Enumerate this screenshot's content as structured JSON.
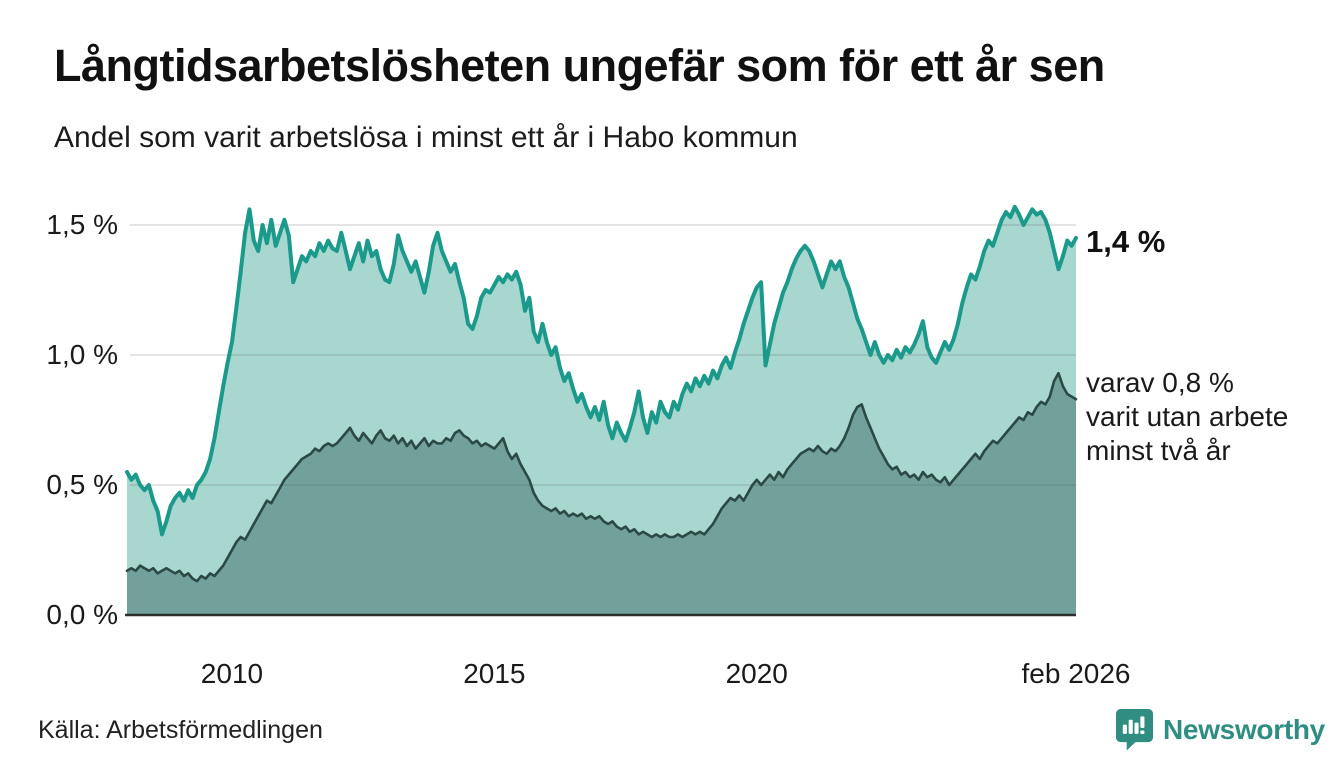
{
  "header": {
    "title": "Långtidsarbetslösheten ungefär som för ett år sen",
    "subtitle": "Andel som varit arbetslösa i minst ett år i Habo kommun"
  },
  "axis": {
    "y_labels": [
      "0,0 %",
      "0,5 %",
      "1,0 %",
      "1,5 %"
    ],
    "x_labels": [
      "2010",
      "2015",
      "2020",
      "feb 2026"
    ]
  },
  "annotations": {
    "end_value": "1,4 %",
    "sub_line1": "varav 0,8 %",
    "sub_line2": "varit utan arbete",
    "sub_line3": "minst två år"
  },
  "footer": {
    "source": "Källa: Arbetsförmedlingen",
    "brand": "Newsworthy"
  },
  "colors": {
    "line1": "#1b9a8c",
    "fill1": "#a8d7d0",
    "line2": "#2b4a45",
    "fill2": "#71a19a",
    "grid": "rgba(90,90,90,0.16)",
    "baseline": "#2f2f2f",
    "brand_teal": "#2f8d82"
  },
  "chart_data": {
    "type": "area",
    "title": "Långtidsarbetslösheten ungefär som för ett år sen",
    "subtitle": "Andel som varit arbetslösa i minst ett år i Habo kommun",
    "unit": "%",
    "x_domain": [
      2008.0,
      2026.0833
    ],
    "x_ticks": [
      {
        "label": "2010",
        "x": 2010
      },
      {
        "label": "2015",
        "x": 2015
      },
      {
        "label": "2020",
        "x": 2020
      },
      {
        "label": "feb 2026",
        "x": 2026.0833
      }
    ],
    "y_tick_values": [
      0,
      0.5,
      1.0,
      1.5
    ],
    "y_tick_labels": [
      "0,0 %",
      "0,5 %",
      "1,0 %",
      "1,5 %"
    ],
    "ylim": [
      0,
      1.65
    ],
    "grid": true,
    "legend_position": "right-annotations",
    "end_labels": {
      "series1": "1,4 %",
      "series2": "varav 0,8 % varit utan arbete minst två år"
    },
    "frequency": "monthly",
    "start": "2008-01",
    "end": "2026-02",
    "series": [
      {
        "name": "Andel arbetslösa minst ett år",
        "end_value": 1.4,
        "values": [
          0.55,
          0.52,
          0.54,
          0.5,
          0.48,
          0.5,
          0.44,
          0.4,
          0.31,
          0.36,
          0.42,
          0.45,
          0.47,
          0.44,
          0.48,
          0.45,
          0.5,
          0.52,
          0.55,
          0.6,
          0.68,
          0.78,
          0.88,
          0.97,
          1.05,
          1.18,
          1.32,
          1.47,
          1.56,
          1.44,
          1.4,
          1.5,
          1.43,
          1.52,
          1.42,
          1.47,
          1.52,
          1.46,
          1.28,
          1.33,
          1.38,
          1.36,
          1.4,
          1.38,
          1.43,
          1.4,
          1.44,
          1.41,
          1.4,
          1.47,
          1.4,
          1.33,
          1.38,
          1.43,
          1.36,
          1.44,
          1.38,
          1.4,
          1.33,
          1.29,
          1.28,
          1.35,
          1.46,
          1.4,
          1.36,
          1.32,
          1.36,
          1.3,
          1.24,
          1.32,
          1.42,
          1.47,
          1.4,
          1.36,
          1.32,
          1.35,
          1.28,
          1.22,
          1.12,
          1.1,
          1.15,
          1.22,
          1.25,
          1.24,
          1.27,
          1.3,
          1.28,
          1.31,
          1.29,
          1.32,
          1.27,
          1.17,
          1.22,
          1.09,
          1.05,
          1.12,
          1.05,
          1.0,
          1.03,
          0.95,
          0.9,
          0.93,
          0.87,
          0.82,
          0.85,
          0.8,
          0.76,
          0.8,
          0.75,
          0.82,
          0.73,
          0.68,
          0.74,
          0.7,
          0.67,
          0.72,
          0.78,
          0.86,
          0.76,
          0.7,
          0.78,
          0.74,
          0.82,
          0.78,
          0.76,
          0.82,
          0.79,
          0.85,
          0.89,
          0.86,
          0.91,
          0.88,
          0.92,
          0.89,
          0.94,
          0.91,
          0.96,
          0.99,
          0.95,
          1.01,
          1.06,
          1.12,
          1.17,
          1.22,
          1.26,
          1.28,
          0.96,
          1.04,
          1.12,
          1.18,
          1.24,
          1.28,
          1.33,
          1.37,
          1.4,
          1.42,
          1.4,
          1.36,
          1.31,
          1.26,
          1.31,
          1.36,
          1.33,
          1.36,
          1.3,
          1.26,
          1.2,
          1.14,
          1.1,
          1.05,
          1.0,
          1.05,
          1.0,
          0.97,
          1.0,
          0.98,
          1.02,
          0.99,
          1.03,
          1.01,
          1.04,
          1.08,
          1.13,
          1.03,
          0.99,
          0.97,
          1.01,
          1.05,
          1.02,
          1.06,
          1.12,
          1.2,
          1.26,
          1.31,
          1.29,
          1.34,
          1.4,
          1.44,
          1.42,
          1.47,
          1.52,
          1.55,
          1.53,
          1.57,
          1.54,
          1.5,
          1.53,
          1.56,
          1.54,
          1.55,
          1.52,
          1.47,
          1.4,
          1.33,
          1.38,
          1.44,
          1.42,
          1.45
        ]
      },
      {
        "name": "varav utan arbete minst två år",
        "end_value": 0.8,
        "values": [
          0.17,
          0.18,
          0.17,
          0.19,
          0.18,
          0.17,
          0.18,
          0.16,
          0.17,
          0.18,
          0.17,
          0.16,
          0.17,
          0.15,
          0.16,
          0.14,
          0.13,
          0.15,
          0.14,
          0.16,
          0.15,
          0.17,
          0.19,
          0.22,
          0.25,
          0.28,
          0.3,
          0.29,
          0.32,
          0.35,
          0.38,
          0.41,
          0.44,
          0.43,
          0.46,
          0.49,
          0.52,
          0.54,
          0.56,
          0.58,
          0.6,
          0.61,
          0.62,
          0.64,
          0.63,
          0.65,
          0.66,
          0.65,
          0.66,
          0.68,
          0.7,
          0.72,
          0.69,
          0.67,
          0.7,
          0.68,
          0.66,
          0.69,
          0.71,
          0.68,
          0.67,
          0.69,
          0.66,
          0.68,
          0.65,
          0.67,
          0.64,
          0.66,
          0.68,
          0.65,
          0.67,
          0.66,
          0.66,
          0.68,
          0.67,
          0.7,
          0.71,
          0.69,
          0.68,
          0.66,
          0.67,
          0.65,
          0.66,
          0.65,
          0.64,
          0.66,
          0.68,
          0.63,
          0.6,
          0.62,
          0.58,
          0.55,
          0.52,
          0.47,
          0.44,
          0.42,
          0.41,
          0.4,
          0.41,
          0.39,
          0.4,
          0.38,
          0.39,
          0.38,
          0.39,
          0.37,
          0.38,
          0.37,
          0.38,
          0.36,
          0.35,
          0.36,
          0.34,
          0.33,
          0.34,
          0.32,
          0.33,
          0.31,
          0.32,
          0.31,
          0.3,
          0.31,
          0.3,
          0.31,
          0.3,
          0.3,
          0.31,
          0.3,
          0.31,
          0.32,
          0.31,
          0.32,
          0.31,
          0.33,
          0.35,
          0.38,
          0.41,
          0.43,
          0.45,
          0.44,
          0.46,
          0.44,
          0.47,
          0.5,
          0.52,
          0.5,
          0.52,
          0.54,
          0.52,
          0.55,
          0.53,
          0.56,
          0.58,
          0.6,
          0.62,
          0.63,
          0.64,
          0.63,
          0.65,
          0.63,
          0.62,
          0.64,
          0.63,
          0.65,
          0.68,
          0.72,
          0.77,
          0.8,
          0.81,
          0.76,
          0.72,
          0.68,
          0.64,
          0.61,
          0.58,
          0.56,
          0.57,
          0.54,
          0.55,
          0.53,
          0.54,
          0.52,
          0.55,
          0.53,
          0.54,
          0.52,
          0.51,
          0.53,
          0.5,
          0.52,
          0.54,
          0.56,
          0.58,
          0.6,
          0.62,
          0.6,
          0.63,
          0.65,
          0.67,
          0.66,
          0.68,
          0.7,
          0.72,
          0.74,
          0.76,
          0.75,
          0.78,
          0.77,
          0.8,
          0.82,
          0.81,
          0.84,
          0.9,
          0.93,
          0.88,
          0.85,
          0.84,
          0.83
        ]
      }
    ]
  }
}
